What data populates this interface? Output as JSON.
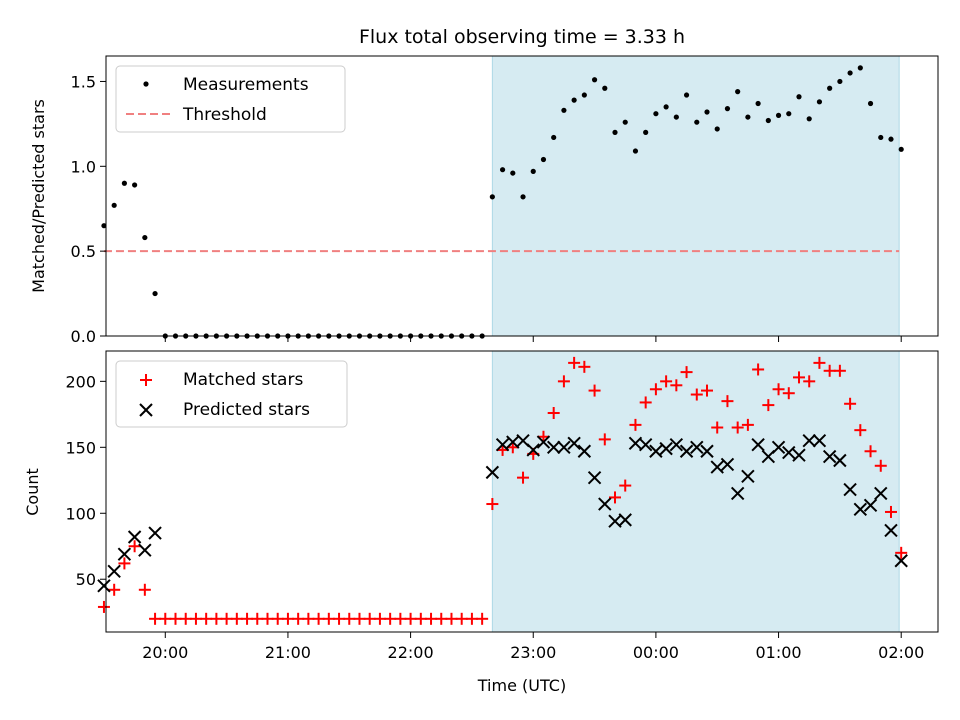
{
  "figure_title": "Flux total observing time = 3.33 h",
  "chart_data": [
    {
      "type": "scatter",
      "ylabel": "Matched/Predicted stars",
      "ylim": [
        0,
        1.65
      ],
      "yticks": [
        0.0,
        0.5,
        1.0,
        1.5
      ],
      "ytick_labels": [
        "0.0",
        "0.5",
        "1.0",
        "1.5"
      ],
      "xlim": [
        "19:31",
        "02:18"
      ],
      "shaded_span": [
        "22:40",
        "01:59"
      ],
      "shade_color": "#add8e6",
      "legend_position": "upper-left",
      "threshold": {
        "name": "Threshold",
        "value": 0.5,
        "x_start": "19:30",
        "x_end": "01:59",
        "color": "#f08080"
      },
      "series": [
        {
          "name": "Measurements",
          "color": "#000000",
          "x": [
            "19:30",
            "19:35",
            "19:40",
            "19:45",
            "19:50",
            "19:55",
            "20:00",
            "20:05",
            "20:10",
            "20:15",
            "20:20",
            "20:25",
            "20:30",
            "20:35",
            "20:40",
            "20:45",
            "20:50",
            "20:55",
            "21:00",
            "21:05",
            "21:10",
            "21:15",
            "21:20",
            "21:25",
            "21:30",
            "21:35",
            "21:40",
            "21:45",
            "21:50",
            "21:55",
            "22:00",
            "22:05",
            "22:10",
            "22:15",
            "22:20",
            "22:25",
            "22:30",
            "22:35",
            "22:40",
            "22:45",
            "22:50",
            "22:55",
            "23:00",
            "23:05",
            "23:10",
            "23:15",
            "23:20",
            "23:25",
            "23:30",
            "23:35",
            "23:40",
            "23:45",
            "23:50",
            "23:55",
            "00:00",
            "00:05",
            "00:10",
            "00:15",
            "00:20",
            "00:25",
            "00:30",
            "00:35",
            "00:40",
            "00:45",
            "00:50",
            "00:55",
            "01:00",
            "01:05",
            "01:10",
            "01:15",
            "01:20",
            "01:25",
            "01:30",
            "01:35",
            "01:40",
            "01:45",
            "01:50",
            "01:55",
            "02:00"
          ],
          "y": [
            0.65,
            0.77,
            0.9,
            0.89,
            0.58,
            0.25,
            0.0,
            0.0,
            0.0,
            0.0,
            0.0,
            0.0,
            0.0,
            0.0,
            0.0,
            0.0,
            0.0,
            0.0,
            0.0,
            0.0,
            0.0,
            0.0,
            0.0,
            0.0,
            0.0,
            0.0,
            0.0,
            0.0,
            0.0,
            0.0,
            0.0,
            0.0,
            0.0,
            0.0,
            0.0,
            0.0,
            0.0,
            0.0,
            0.82,
            0.98,
            0.96,
            0.82,
            0.97,
            1.04,
            1.17,
            1.33,
            1.39,
            1.42,
            1.51,
            1.46,
            1.2,
            1.26,
            1.09,
            1.2,
            1.31,
            1.35,
            1.29,
            1.42,
            1.26,
            1.32,
            1.22,
            1.34,
            1.44,
            1.29,
            1.37,
            1.27,
            1.3,
            1.31,
            1.41,
            1.28,
            1.38,
            1.46,
            1.5,
            1.55,
            1.58,
            1.37,
            1.17,
            1.16,
            1.1
          ]
        }
      ]
    },
    {
      "type": "scatter",
      "xlabel": "Time (UTC)",
      "ylabel": "Count",
      "ylim": [
        10,
        223
      ],
      "yticks": [
        50,
        100,
        150,
        200
      ],
      "ytick_labels": [
        "50",
        "100",
        "150",
        "200"
      ],
      "xlim": [
        "19:31",
        "02:18"
      ],
      "xticks": [
        "20:00",
        "21:00",
        "22:00",
        "23:00",
        "00:00",
        "01:00",
        "02:00"
      ],
      "shaded_span": [
        "22:40",
        "01:59"
      ],
      "shade_color": "#add8e6",
      "legend_position": "upper-left",
      "series": [
        {
          "name": "Matched stars",
          "marker": "plus",
          "color": "#ff0000",
          "x": [
            "19:30",
            "19:35",
            "19:40",
            "19:45",
            "19:50",
            "19:55",
            "20:00",
            "20:05",
            "20:10",
            "20:15",
            "20:20",
            "20:25",
            "20:30",
            "20:35",
            "20:40",
            "20:45",
            "20:50",
            "20:55",
            "21:00",
            "21:05",
            "21:10",
            "21:15",
            "21:20",
            "21:25",
            "21:30",
            "21:35",
            "21:40",
            "21:45",
            "21:50",
            "21:55",
            "22:00",
            "22:05",
            "22:10",
            "22:15",
            "22:20",
            "22:25",
            "22:30",
            "22:35",
            "22:40",
            "22:45",
            "22:50",
            "22:55",
            "23:00",
            "23:05",
            "23:10",
            "23:15",
            "23:20",
            "23:25",
            "23:30",
            "23:35",
            "23:40",
            "23:45",
            "23:50",
            "23:55",
            "00:00",
            "00:05",
            "00:10",
            "00:15",
            "00:20",
            "00:25",
            "00:30",
            "00:35",
            "00:40",
            "00:45",
            "00:50",
            "00:55",
            "01:00",
            "01:05",
            "01:10",
            "01:15",
            "01:20",
            "01:25",
            "01:30",
            "01:35",
            "01:40",
            "01:45",
            "01:50",
            "01:55",
            "02:00"
          ],
          "y": [
            29,
            42,
            62,
            75,
            42,
            20,
            20,
            20,
            20,
            20,
            20,
            20,
            20,
            20,
            20,
            20,
            20,
            20,
            20,
            20,
            20,
            20,
            20,
            20,
            20,
            20,
            20,
            20,
            20,
            20,
            20,
            20,
            20,
            20,
            20,
            20,
            20,
            20,
            107,
            148,
            150,
            127,
            145,
            158,
            176,
            200,
            214,
            211,
            193,
            156,
            112,
            121,
            167,
            184,
            194,
            200,
            197,
            207,
            190,
            193,
            165,
            185,
            165,
            167,
            209,
            182,
            194,
            191,
            203,
            200,
            214,
            208,
            208,
            183,
            163,
            147,
            136,
            101,
            70
          ]
        },
        {
          "name": "Predicted stars",
          "marker": "x",
          "color": "#000000",
          "x": [
            "19:30",
            "19:35",
            "19:40",
            "19:45",
            "19:50",
            "19:55",
            "22:40",
            "22:45",
            "22:50",
            "22:55",
            "23:00",
            "23:05",
            "23:10",
            "23:15",
            "23:20",
            "23:25",
            "23:30",
            "23:35",
            "23:40",
            "23:45",
            "23:50",
            "23:55",
            "00:00",
            "00:05",
            "00:10",
            "00:15",
            "00:20",
            "00:25",
            "00:30",
            "00:35",
            "00:40",
            "00:45",
            "00:50",
            "00:55",
            "01:00",
            "01:05",
            "01:10",
            "01:15",
            "01:20",
            "01:25",
            "01:30",
            "01:35",
            "01:40",
            "01:45",
            "01:50",
            "01:55",
            "02:00"
          ],
          "y": [
            45,
            56,
            69,
            82,
            72,
            85,
            131,
            152,
            154,
            155,
            148,
            154,
            150,
            150,
            153,
            147,
            127,
            107,
            94,
            95,
            153,
            152,
            147,
            149,
            152,
            147,
            150,
            147,
            135,
            137,
            115,
            128,
            152,
            143,
            150,
            146,
            144,
            155,
            155,
            143,
            140,
            118,
            103,
            106,
            115,
            87,
            64
          ]
        }
      ]
    }
  ]
}
